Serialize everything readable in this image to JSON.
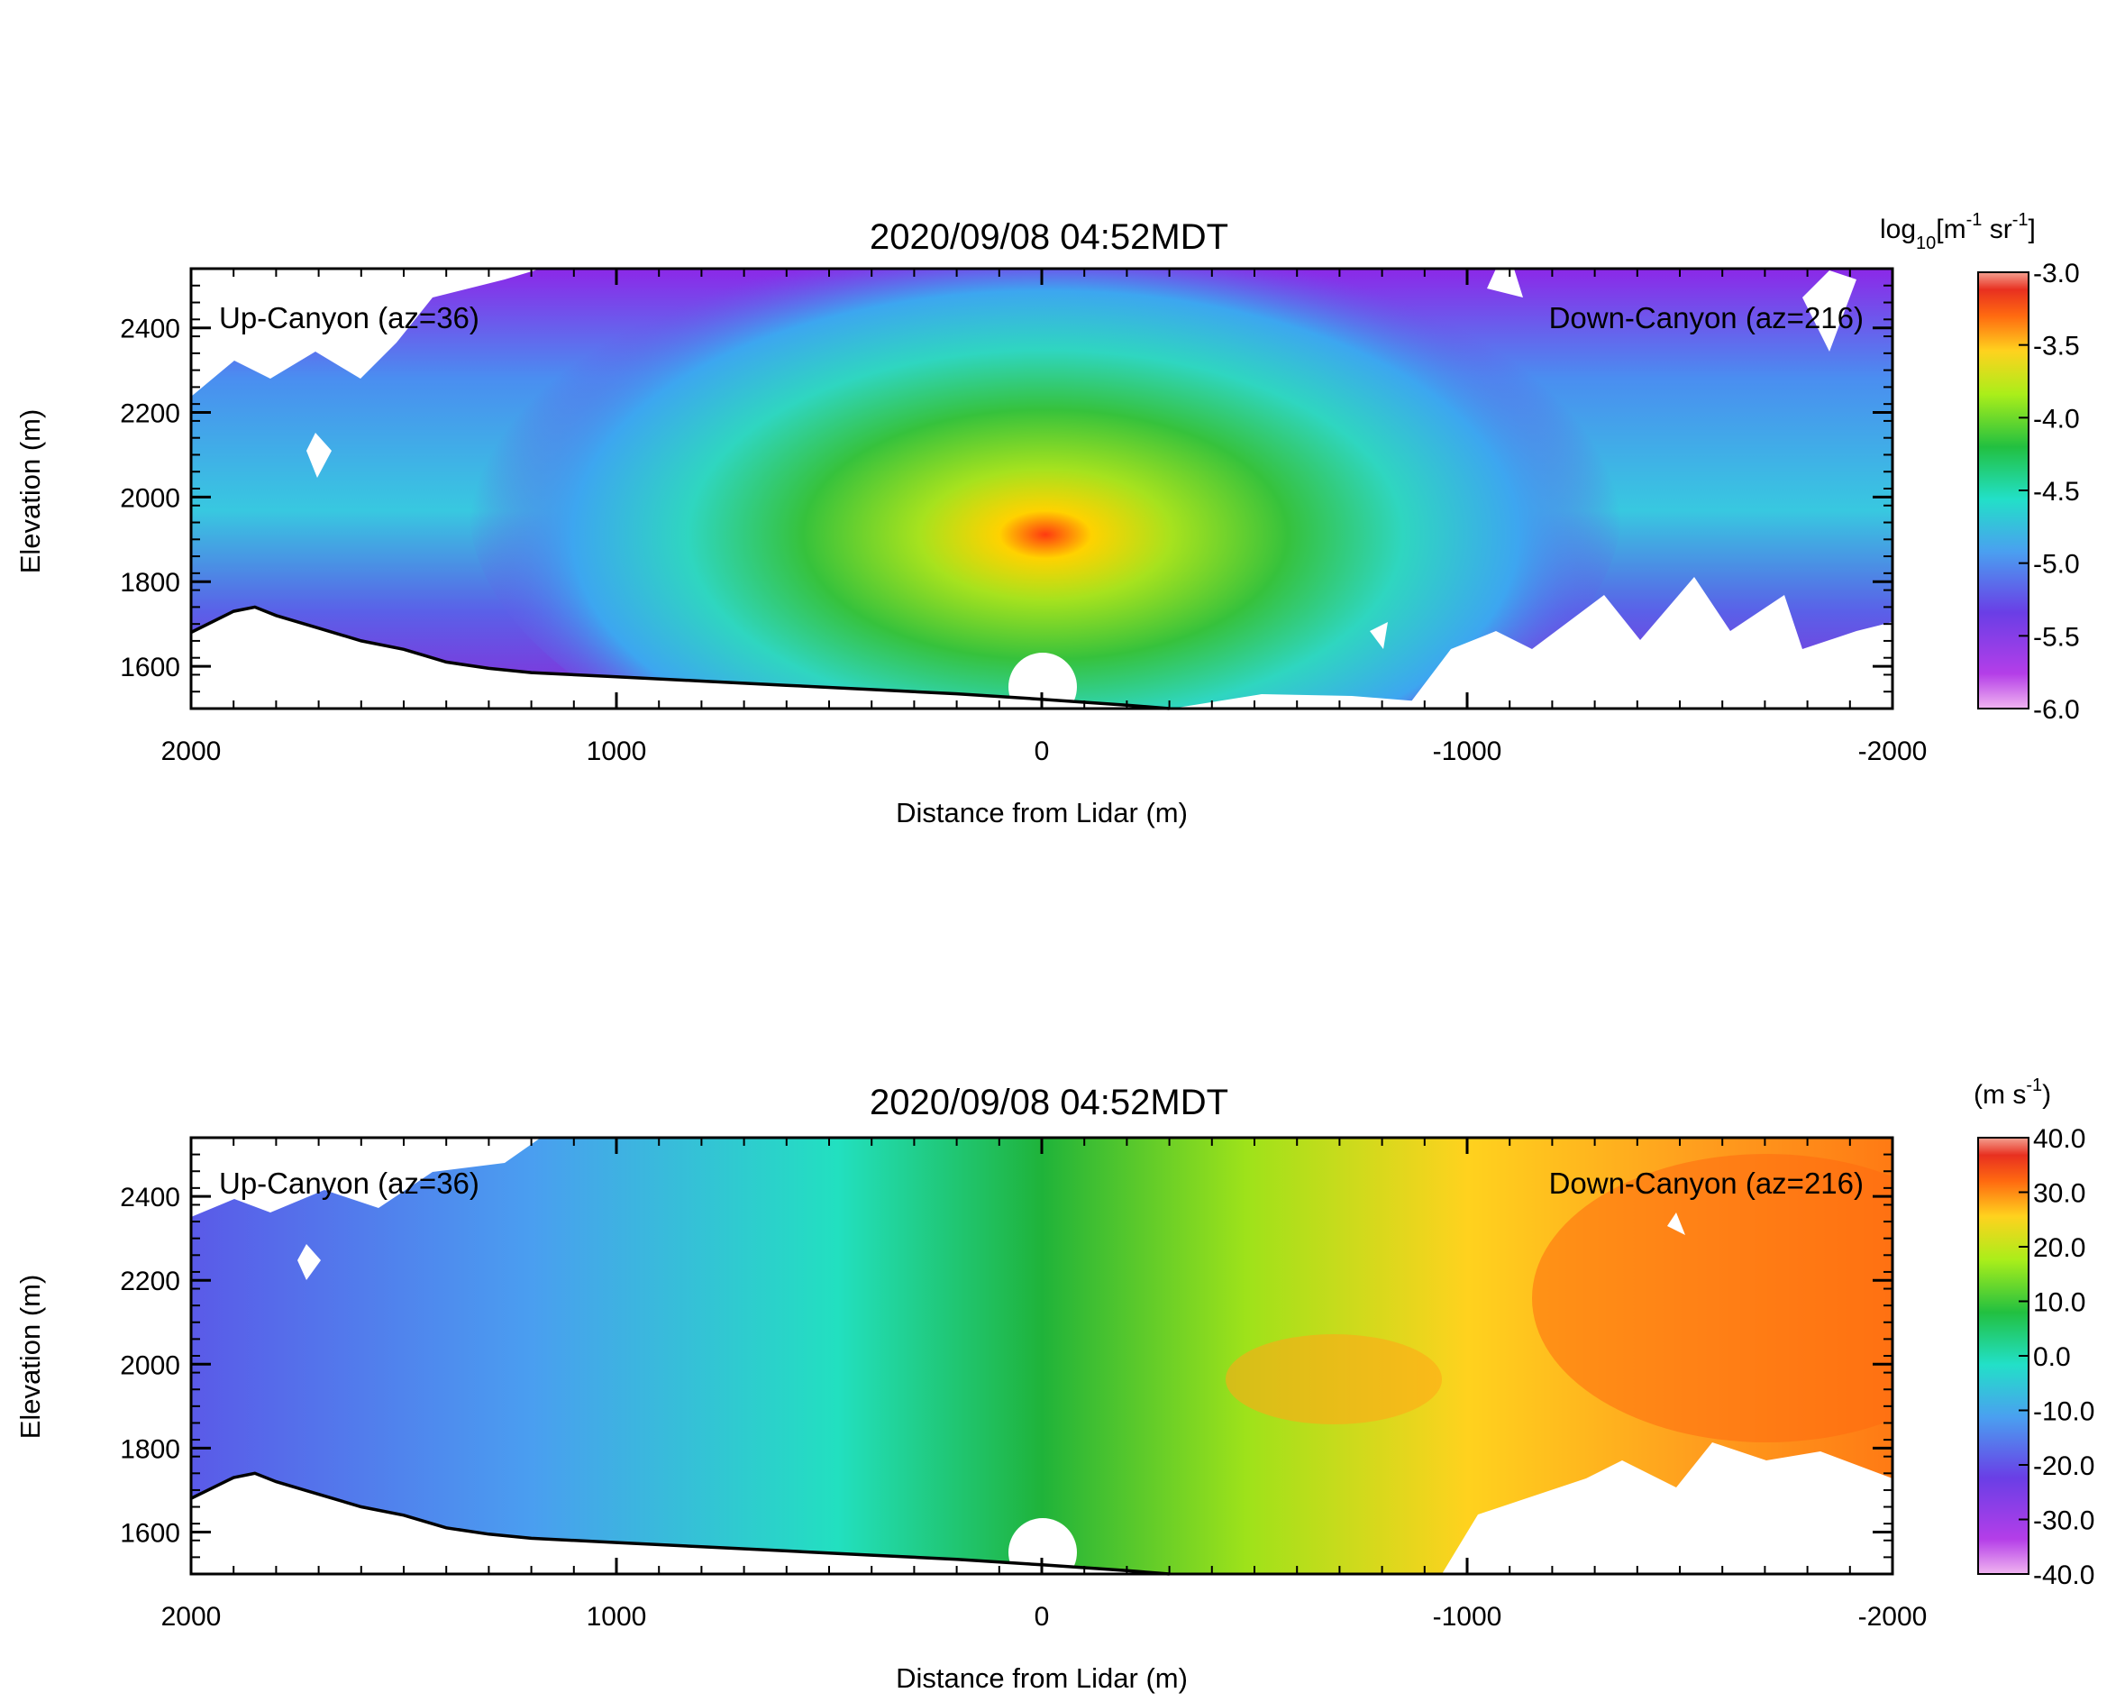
{
  "chart_data": [
    {
      "type": "heatmap",
      "variable": "backscatter",
      "title": "2020/09/08 04:52MDT",
      "xlabel": "Distance from Lidar (m)",
      "ylabel": "Elevation (m)",
      "xlim": [
        2000,
        -2000
      ],
      "ylim": [
        1500,
        2540
      ],
      "x_ticks": [
        "2000",
        "1000",
        "0",
        "-1000",
        "-2000"
      ],
      "x_tick_values": [
        2000,
        1000,
        0,
        -1000,
        -2000
      ],
      "y_ticks": [
        "1600",
        "1800",
        "2000",
        "2200",
        "2400"
      ],
      "y_tick_values": [
        1600,
        1800,
        2000,
        2200,
        2400
      ],
      "annotations": {
        "left": "Up-Canyon (az=36)",
        "right": "Down-Canyon (az=216)"
      },
      "colorbar": {
        "label_main": "log",
        "label_sub": "10",
        "label_rest": "[m",
        "label_exp1": "-1",
        "label_mid": " sr",
        "label_exp2": "-1",
        "label_end": "]",
        "range": [
          -6.0,
          -3.0
        ],
        "ticks": [
          "-3.0",
          "-3.5",
          "-4.0",
          "-4.5",
          "-5.0",
          "-5.5",
          "-6.0"
        ],
        "tick_values": [
          -3.0,
          -3.5,
          -4.0,
          -4.5,
          -5.0,
          -5.5,
          -6.0
        ]
      },
      "terrain": {
        "x": [
          2000,
          1900,
          1850,
          1800,
          1700,
          1600,
          1500,
          1450,
          1400,
          1300,
          1200,
          1000,
          800,
          600,
          400,
          200,
          0,
          -100,
          -200,
          -300
        ],
        "y": [
          1680,
          1730,
          1740,
          1720,
          1690,
          1660,
          1640,
          1625,
          1610,
          1595,
          1585,
          1575,
          1565,
          1555,
          1545,
          1535,
          1522,
          1515,
          1508,
          1500
        ]
      }
    },
    {
      "type": "heatmap",
      "variable": "radial-velocity",
      "title": "2020/09/08 04:52MDT",
      "xlabel": "Distance from Lidar (m)",
      "ylabel": "Elevation (m)",
      "xlim": [
        2000,
        -2000
      ],
      "ylim": [
        1500,
        2540
      ],
      "x_ticks": [
        "2000",
        "1000",
        "0",
        "-1000",
        "-2000"
      ],
      "x_tick_values": [
        2000,
        1000,
        0,
        -1000,
        -2000
      ],
      "y_ticks": [
        "1600",
        "1800",
        "2000",
        "2200",
        "2400"
      ],
      "y_tick_values": [
        1600,
        1800,
        2000,
        2200,
        2400
      ],
      "annotations": {
        "left": "Up-Canyon (az=36)",
        "right": "Down-Canyon (az=216)"
      },
      "colorbar": {
        "label_main": "(m s",
        "label_exp1": "-1",
        "label_end": ")",
        "range": [
          -40.0,
          40.0
        ],
        "ticks": [
          "40.0",
          "30.0",
          "20.0",
          "10.0",
          "0.0",
          "-10.0",
          "-20.0",
          "-30.0",
          "-40.0"
        ],
        "tick_values": [
          40,
          30,
          20,
          10,
          0,
          -10,
          -20,
          -30,
          -40
        ]
      },
      "terrain": {
        "x": [
          2000,
          1900,
          1850,
          1800,
          1700,
          1600,
          1500,
          1450,
          1400,
          1300,
          1200,
          1000,
          800,
          600,
          400,
          200,
          0,
          -100,
          -200,
          -300
        ],
        "y": [
          1680,
          1730,
          1740,
          1720,
          1690,
          1660,
          1640,
          1625,
          1610,
          1595,
          1585,
          1575,
          1565,
          1555,
          1545,
          1535,
          1522,
          1515,
          1508,
          1500
        ]
      }
    }
  ]
}
